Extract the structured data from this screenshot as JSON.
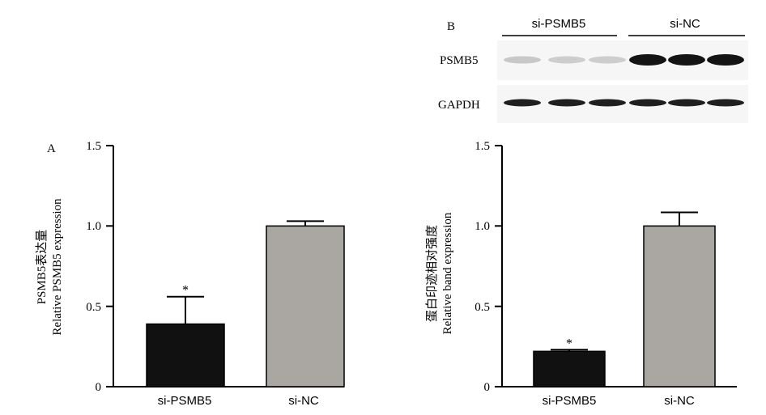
{
  "panels": {
    "a": {
      "letter": "A",
      "ylabel_cn": "PSMB5表达量",
      "ylabel_en": "Relative PSMB5 expression"
    },
    "b_chart": {
      "ylabel_cn": "蛋白印迹相对强度",
      "ylabel_en": "Relative band expression"
    }
  },
  "blot": {
    "letter": "B",
    "groups": [
      {
        "label": "si-PSMB5"
      },
      {
        "label": "si-NC"
      }
    ],
    "rows": [
      {
        "label": "PSMB5",
        "intensities": [
          0.18,
          0.16,
          0.16,
          1.0,
          1.0,
          1.0
        ]
      },
      {
        "label": "GAPDH",
        "intensities": [
          0.95,
          0.95,
          0.95,
          0.95,
          0.95,
          0.95
        ]
      }
    ]
  },
  "colors": {
    "si_PSMB5": "#111111",
    "si_NC": "#aaa6a2",
    "axis": "#000000"
  },
  "chart_data": [
    {
      "type": "bar",
      "categories": [
        "si-PSMB5",
        "si-NC"
      ],
      "values": [
        0.39,
        1.0
      ],
      "errors": [
        0.17,
        0.03
      ],
      "annotations": [
        "*",
        ""
      ],
      "yticks": [
        "0",
        "0.5",
        "1.0",
        "1.5"
      ],
      "ylim": [
        0,
        1.5
      ],
      "ylabel": "PSMB5表达量 Relative PSMB5 expression"
    },
    {
      "type": "bar",
      "categories": [
        "si-PSMB5",
        "si-NC"
      ],
      "values": [
        0.22,
        1.0
      ],
      "errors": [
        0.01,
        0.085
      ],
      "annotations": [
        "*",
        ""
      ],
      "yticks": [
        "0",
        "0.5",
        "1.0",
        "1.5"
      ],
      "ylim": [
        0,
        1.5
      ],
      "ylabel": "蛋白印迹相对强度 Relative band expression"
    }
  ]
}
